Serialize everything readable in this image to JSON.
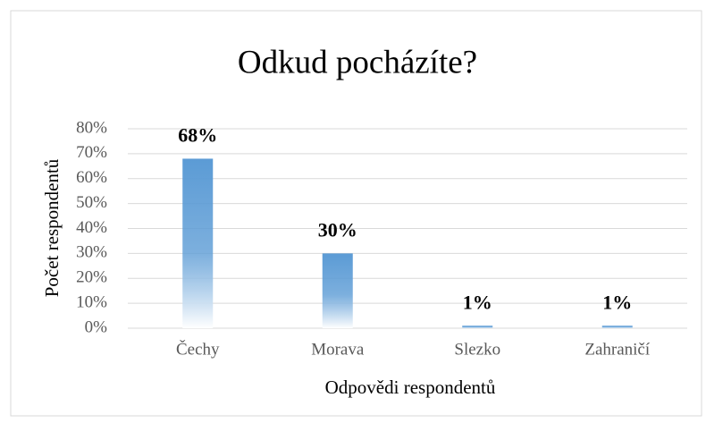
{
  "chart_data": {
    "type": "bar",
    "title": "Odkud pocházíte?",
    "x_label": "Odpovědi respondentů",
    "y_label": "Počet respondentů",
    "categories": [
      "Čechy",
      "Morava",
      "Slezko",
      "Zahraničí"
    ],
    "values": [
      68,
      30,
      1,
      1
    ],
    "value_labels": [
      "68%",
      "30%",
      "1%",
      "1%"
    ],
    "color": "#5b9bd5",
    "ylim": [
      0,
      80
    ],
    "yticks": [
      {
        "value": 0,
        "label": "0%"
      },
      {
        "value": 10,
        "label": "10%"
      },
      {
        "value": 20,
        "label": "20%"
      },
      {
        "value": 30,
        "label": "30%"
      },
      {
        "value": 40,
        "label": "40%"
      },
      {
        "value": 50,
        "label": "50%"
      },
      {
        "value": 60,
        "label": "60%"
      },
      {
        "value": 70,
        "label": "70%"
      },
      {
        "value": 80,
        "label": "80%"
      }
    ],
    "grid": true
  }
}
